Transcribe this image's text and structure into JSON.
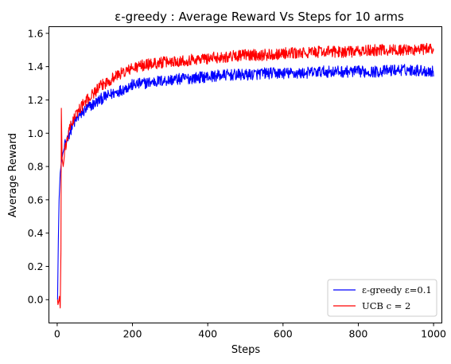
{
  "chart_data": {
    "type": "line",
    "title": "ε-greedy : Average Reward Vs Steps for 10 arms",
    "xlabel": "Steps",
    "ylabel": "Average Reward",
    "xlim": [
      -22,
      1022
    ],
    "ylim": [
      -0.14,
      1.64
    ],
    "xticks": [
      0,
      200,
      400,
      600,
      800,
      1000
    ],
    "yticks": [
      0.0,
      0.2,
      0.4,
      0.6,
      0.8,
      1.0,
      1.2,
      1.4,
      1.6
    ],
    "ytick_labels": [
      "0.0",
      "0.2",
      "0.4",
      "0.6",
      "0.8",
      "1.0",
      "1.2",
      "1.4",
      "1.6"
    ],
    "grid": false,
    "legend_position": "lower-right",
    "series": [
      {
        "name": "ε-greedy ε=0.1",
        "color": "#0000ff",
        "x": [
          1,
          3,
          5,
          8,
          10,
          12,
          15,
          20,
          25,
          30,
          40,
          50,
          60,
          80,
          100,
          120,
          140,
          160,
          180,
          200,
          230,
          260,
          300,
          350,
          400,
          450,
          500,
          550,
          600,
          650,
          700,
          750,
          800,
          850,
          900,
          950,
          1000
        ],
        "values": [
          0.0,
          0.35,
          0.6,
          0.76,
          0.8,
          0.84,
          0.88,
          0.92,
          0.96,
          0.99,
          1.04,
          1.08,
          1.11,
          1.15,
          1.18,
          1.21,
          1.23,
          1.25,
          1.27,
          1.29,
          1.3,
          1.31,
          1.32,
          1.33,
          1.34,
          1.35,
          1.35,
          1.36,
          1.36,
          1.36,
          1.37,
          1.37,
          1.37,
          1.37,
          1.38,
          1.38,
          1.37
        ]
      },
      {
        "name": "UCB c = 2",
        "color": "#ff0000",
        "x": [
          1,
          2,
          4,
          6,
          8,
          10,
          11,
          13,
          16,
          20,
          25,
          30,
          40,
          50,
          60,
          80,
          100,
          120,
          140,
          160,
          180,
          200,
          230,
          260,
          300,
          350,
          400,
          450,
          500,
          550,
          600,
          650,
          700,
          750,
          800,
          850,
          900,
          950,
          1000
        ],
        "values": [
          0.0,
          -0.03,
          -0.01,
          0.02,
          -0.05,
          0.3,
          1.15,
          0.85,
          0.8,
          0.88,
          0.95,
          1.0,
          1.07,
          1.11,
          1.15,
          1.2,
          1.25,
          1.29,
          1.32,
          1.35,
          1.37,
          1.39,
          1.41,
          1.42,
          1.43,
          1.44,
          1.45,
          1.46,
          1.47,
          1.47,
          1.48,
          1.48,
          1.49,
          1.49,
          1.49,
          1.5,
          1.5,
          1.5,
          1.51
        ]
      }
    ]
  }
}
